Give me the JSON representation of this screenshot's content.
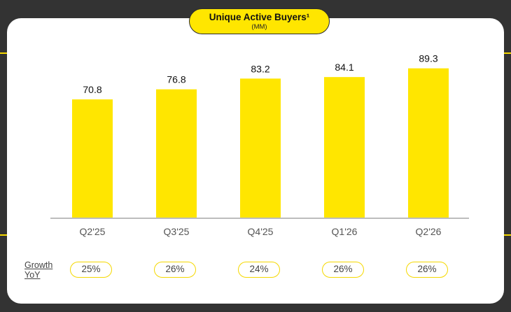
{
  "title": {
    "main": "Unique Active Buyers¹",
    "unit": "(MM)"
  },
  "colors": {
    "background": "#333333",
    "card": "#ffffff",
    "accent": "#ffe600",
    "axis": "#bdbdbd"
  },
  "chart_data": {
    "type": "bar",
    "title": "Unique Active Buyers¹",
    "subtitle": "(MM)",
    "categories": [
      "Q2'25",
      "Q3'25",
      "Q4'25",
      "Q1'26",
      "Q2'26"
    ],
    "values": [
      70.8,
      76.8,
      83.2,
      84.1,
      89.3
    ],
    "value_labels": [
      "70.8",
      "76.8",
      "83.2",
      "84.1",
      "89.3"
    ],
    "grid": false,
    "legend": "none"
  },
  "growth": {
    "label_line1": "Growth",
    "label_line2": "YoY",
    "values": [
      "25%",
      "26%",
      "24%",
      "26%",
      "26%"
    ]
  }
}
